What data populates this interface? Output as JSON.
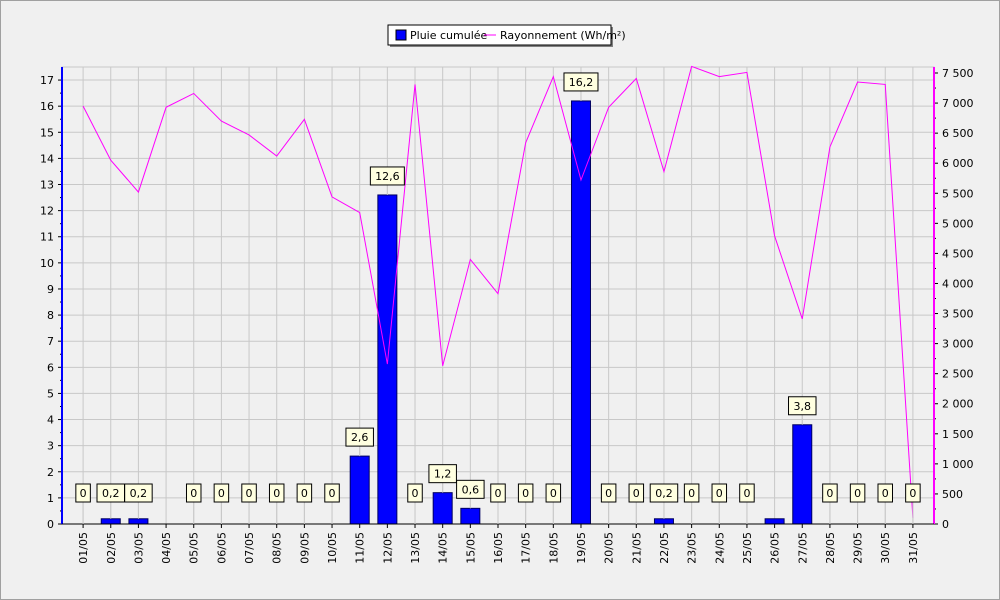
{
  "chart_data": {
    "type": "bar",
    "categories": [
      "01/05",
      "02/05",
      "03/05",
      "04/05",
      "05/05",
      "06/05",
      "07/05",
      "08/05",
      "09/05",
      "10/05",
      "11/05",
      "12/05",
      "13/05",
      "14/05",
      "15/05",
      "16/05",
      "17/05",
      "18/05",
      "19/05",
      "20/05",
      "21/05",
      "22/05",
      "23/05",
      "24/05",
      "25/05",
      "26/05",
      "27/05",
      "28/05",
      "29/05",
      "30/05",
      "31/05"
    ],
    "series": [
      {
        "name": "Pluie cumulée",
        "type": "bar",
        "axis": "left",
        "color": "#0000ff",
        "values": [
          0,
          0.2,
          0.2,
          null,
          0,
          0,
          0,
          0,
          0,
          0,
          2.6,
          12.6,
          0,
          1.2,
          0.6,
          0,
          0,
          0,
          16.2,
          0,
          0,
          0.2,
          0,
          0,
          0,
          0.2,
          3.8,
          0,
          0,
          0,
          0
        ],
        "labels": [
          "0",
          "0,2",
          "0,2",
          "",
          "0",
          "0",
          "0",
          "0",
          "0",
          "0",
          "2,6",
          "12,6",
          "0",
          "1,2",
          "0,6",
          "0",
          "0",
          "0",
          "16,2",
          "0",
          "0",
          "0,2",
          "0",
          "0",
          "0",
          "",
          "3,8",
          "0",
          "0",
          "0",
          "0"
        ]
      },
      {
        "name": "Rayonnement (Wh/m²)",
        "type": "line",
        "axis": "right",
        "color": "#ff00ff",
        "values": [
          6950,
          6050,
          5520,
          6930,
          7160,
          6700,
          6470,
          6120,
          6730,
          5440,
          5180,
          2660,
          7310,
          2630,
          4400,
          3830,
          6340,
          7440,
          5720,
          6930,
          7410,
          5860,
          7610,
          7440,
          7510,
          4790,
          3410,
          6270,
          7350,
          7310,
          100
        ]
      }
    ],
    "y_left": {
      "min": 0,
      "max": 17.5,
      "ticks": [
        0,
        1,
        2,
        3,
        4,
        5,
        6,
        7,
        8,
        9,
        10,
        11,
        12,
        13,
        14,
        15,
        16,
        17
      ]
    },
    "y_right": {
      "min": 0,
      "max": 7600,
      "ticks": [
        0,
        500,
        1000,
        1500,
        2000,
        2500,
        3000,
        3500,
        4000,
        4500,
        5000,
        5500,
        6000,
        6500,
        7000,
        7500
      ]
    },
    "grid": true,
    "legend_position": "top-center"
  }
}
